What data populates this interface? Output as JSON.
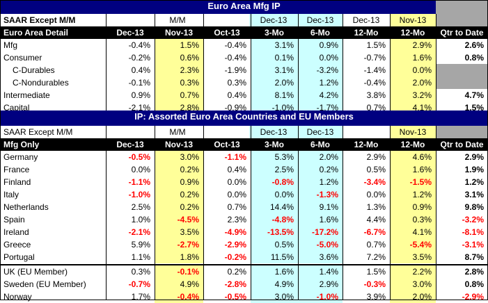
{
  "section1": {
    "title": "Euro Area Mfg IP",
    "header1": {
      "label": "SAAR Except M/M",
      "mm": "M/M",
      "dec13a": "Dec-13",
      "dec13b": "Dec-13",
      "dec13c": "Dec-13",
      "nov13": "Nov-13"
    },
    "header2": [
      "Euro Area Detail",
      "Dec-13",
      "Nov-13",
      "Oct-13",
      "3-Mo",
      "6-Mo",
      "12-Mo",
      "12-Mo",
      "Qtr to Date"
    ],
    "rows": [
      {
        "label": "Mfg",
        "indent": 0,
        "values": [
          "-0.4%",
          "1.5%",
          "-0.4%",
          "3.1%",
          "0.9%",
          "1.5%",
          "2.9%",
          "2.6%"
        ]
      },
      {
        "label": "Consumer",
        "indent": 0,
        "values": [
          "-0.2%",
          "0.6%",
          "-0.4%",
          "0.1%",
          "0.0%",
          "-0.7%",
          "1.6%",
          "0.8%"
        ]
      },
      {
        "label": "C-Durables",
        "indent": 1,
        "values": [
          "0.4%",
          "2.3%",
          "-1.9%",
          "3.1%",
          "-3.2%",
          "-1.4%",
          "0.0%",
          ""
        ]
      },
      {
        "label": "C-Nondurables",
        "indent": 1,
        "values": [
          "-0.1%",
          "0.3%",
          "0.3%",
          "2.0%",
          "1.2%",
          "-0.4%",
          "2.0%",
          ""
        ]
      },
      {
        "label": "Intermediate",
        "indent": 0,
        "values": [
          "0.9%",
          "0.7%",
          "0.4%",
          "8.1%",
          "4.2%",
          "3.8%",
          "3.2%",
          "4.7%"
        ]
      },
      {
        "label": "Capital",
        "indent": 0,
        "values": [
          "-2.1%",
          "2.8%",
          "-0.9%",
          "-1.0%",
          "-1.7%",
          "0.7%",
          "4.1%",
          "1.5%"
        ]
      }
    ]
  },
  "section2": {
    "title": "IP: Assorted Euro Area Countries and EU Members",
    "header1": {
      "label": "SAAR Except M/M",
      "mm": "M/M",
      "dec13a": "Dec-13",
      "dec13b": "Dec-13",
      "nov13": "Nov-13"
    },
    "header2": [
      "Mfg Only",
      "Dec-13",
      "Nov-13",
      "Oct-13",
      "3-Mo",
      "6-Mo",
      "12-Mo",
      "12-Mo",
      "Qtr to Date"
    ],
    "rows": [
      {
        "label": "Germany",
        "values": [
          "-0.5%",
          "3.0%",
          "-1.1%",
          "5.3%",
          "2.0%",
          "2.9%",
          "4.6%",
          "2.9%"
        ]
      },
      {
        "label": "France",
        "values": [
          "0.0%",
          "0.2%",
          "0.4%",
          "2.5%",
          "0.2%",
          "0.5%",
          "1.6%",
          "1.9%"
        ]
      },
      {
        "label": "Finland",
        "values": [
          "-1.1%",
          "0.9%",
          "0.0%",
          "-0.8%",
          "1.2%",
          "-3.4%",
          "-1.5%",
          "1.2%"
        ]
      },
      {
        "label": "Italy",
        "values": [
          "-1.0%",
          "0.2%",
          "0.0%",
          "0.0%",
          "-1.3%",
          "0.0%",
          "1.2%",
          "3.1%"
        ]
      },
      {
        "label": "Netherlands",
        "values": [
          "2.5%",
          "0.2%",
          "0.7%",
          "14.4%",
          "9.1%",
          "1.3%",
          "0.9%",
          "9.8%"
        ]
      },
      {
        "label": "Spain",
        "values": [
          "1.0%",
          "-4.5%",
          "2.3%",
          "-4.8%",
          "1.6%",
          "4.4%",
          "0.3%",
          "-3.2%"
        ]
      },
      {
        "label": "Ireland",
        "values": [
          "-2.1%",
          "3.5%",
          "-4.9%",
          "-13.5%",
          "-17.2%",
          "-6.7%",
          "4.1%",
          "-8.1%"
        ]
      },
      {
        "label": "Greece",
        "values": [
          "5.9%",
          "-2.7%",
          "-2.9%",
          "0.5%",
          "-5.0%",
          "0.7%",
          "-5.4%",
          "-3.1%"
        ]
      },
      {
        "label": "Portugal",
        "values": [
          "1.1%",
          "1.8%",
          "-0.2%",
          "11.5%",
          "3.6%",
          "7.2%",
          "3.5%",
          "8.7%"
        ]
      }
    ],
    "eu_rows": [
      {
        "label": "UK (EU Member)",
        "values": [
          "0.3%",
          "-0.1%",
          "0.2%",
          "1.6%",
          "1.4%",
          "1.5%",
          "2.2%",
          "2.8%"
        ]
      },
      {
        "label": "Sweden (EU Member)",
        "values": [
          "-0.7%",
          "4.9%",
          "-2.8%",
          "4.9%",
          "2.9%",
          "-0.3%",
          "3.0%",
          "0.8%"
        ]
      },
      {
        "label": "Norway",
        "values": [
          "1.7%",
          "-0.4%",
          "-0.5%",
          "3.0%",
          "-1.0%",
          "3.9%",
          "2.0%",
          "-2.9%"
        ]
      }
    ]
  },
  "colors": {
    "title_band": "#000080",
    "yellow": "#ffff99",
    "cyan": "#ccffff",
    "gray": "#a6a6a6",
    "negative_red": "#ff0000"
  }
}
